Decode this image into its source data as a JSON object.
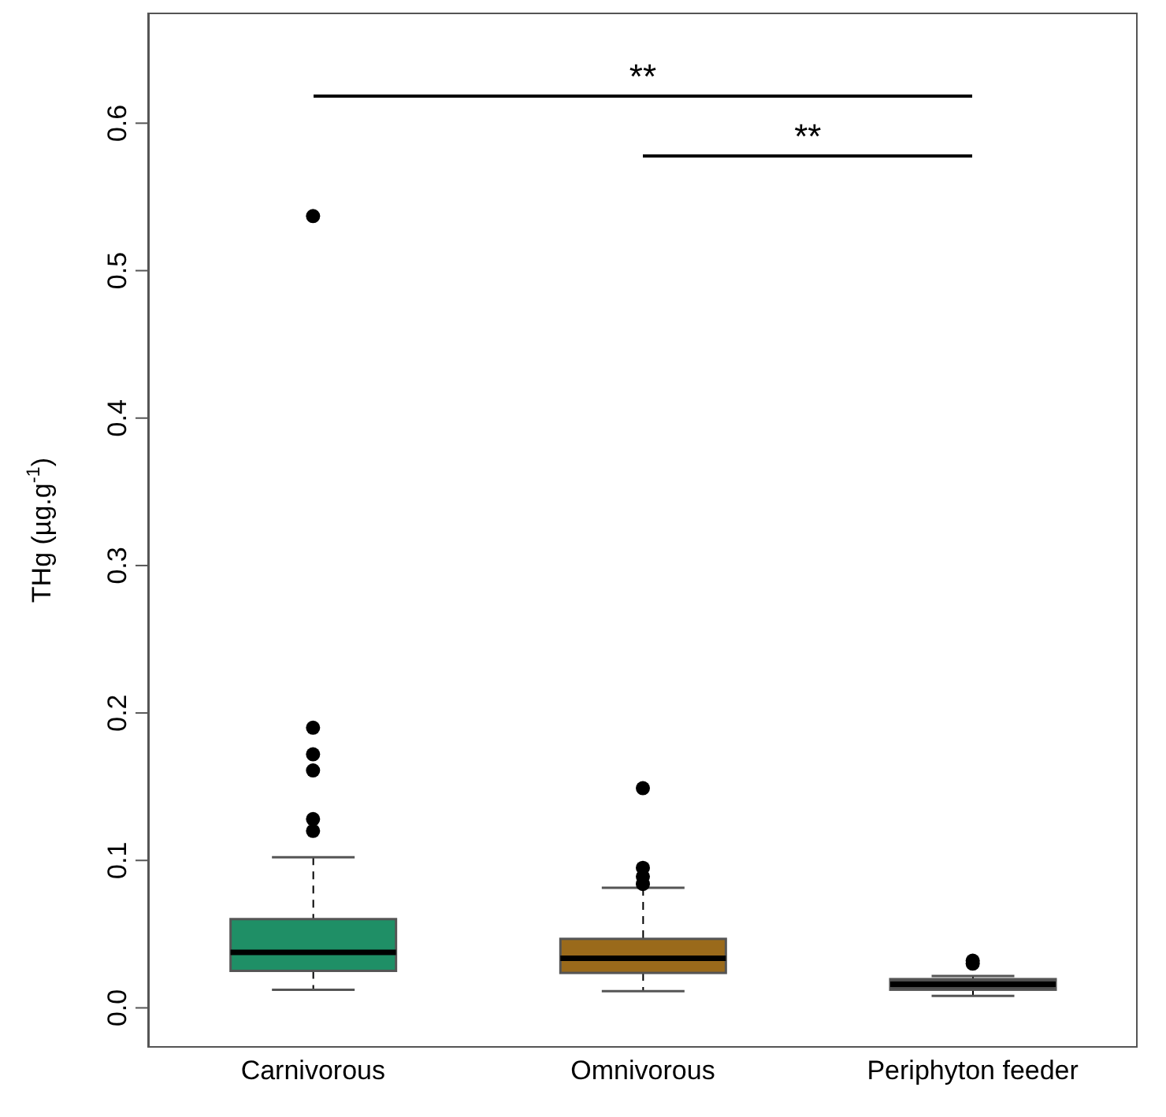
{
  "chart_data": {
    "type": "box",
    "ylabel": "THg (µg.g$^{-1}$)",
    "categories": [
      "Carnivorous",
      "Omnivorous",
      "Periphyton feeder"
    ],
    "colors": [
      "#1f8f66",
      "#9a6a1b",
      "#4d4d4d"
    ],
    "boxes": [
      {
        "low": 0.0123,
        "q1": 0.0251,
        "median": 0.0376,
        "q3": 0.0602,
        "high": 0.1021,
        "outliers": [
          0.12,
          0.128,
          0.161,
          0.172,
          0.19,
          0.537
        ]
      },
      {
        "low": 0.0113,
        "q1": 0.0237,
        "median": 0.0336,
        "q3": 0.0468,
        "high": 0.0815,
        "outliers": [
          0.084,
          0.089,
          0.095,
          0.149
        ]
      },
      {
        "low": 0.0081,
        "q1": 0.0123,
        "median": 0.016,
        "q3": 0.0195,
        "high": 0.0216,
        "outliers": [
          0.03,
          0.032
        ]
      }
    ],
    "ylim": [
      -0.027,
      0.675
    ],
    "yticks": [
      {
        "value": 0,
        "label": "0.0"
      },
      0.1,
      0.2,
      0.3,
      0.4,
      0.5,
      0.6
    ],
    "annotations": [
      "**",
      "**"
    ],
    "grid": false,
    "legend": false
  }
}
